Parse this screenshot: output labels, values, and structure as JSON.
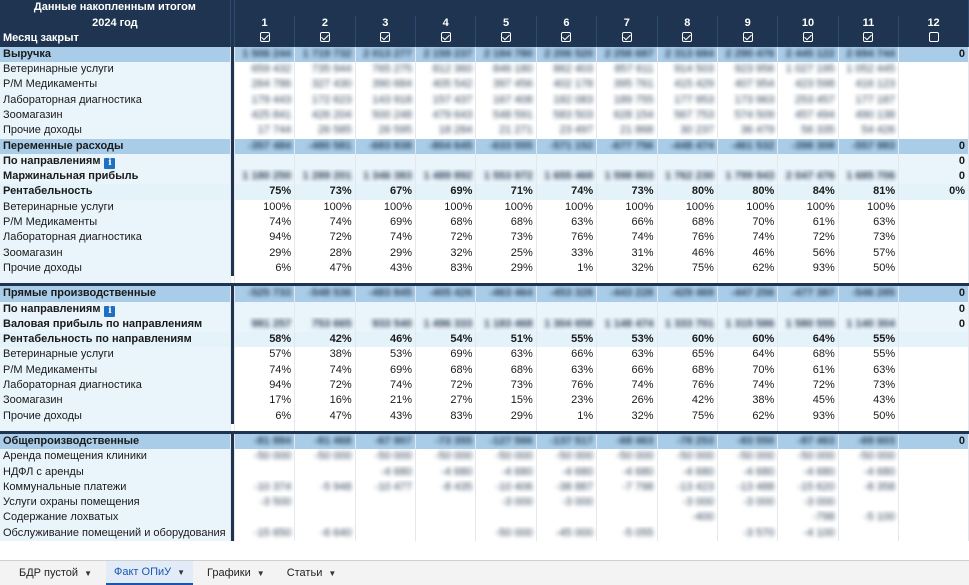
{
  "header": {
    "title": "Данные накопленным итогом",
    "year_label": "2024 год",
    "months": [
      "1",
      "2",
      "3",
      "4",
      "5",
      "6",
      "7",
      "8",
      "9",
      "10",
      "11",
      "12"
    ],
    "month_closed_label": "Месяц закрыт",
    "month_closed": [
      true,
      true,
      true,
      true,
      true,
      true,
      true,
      true,
      true,
      true,
      true,
      false
    ]
  },
  "rows": [
    {
      "type": "sec",
      "label": "Выручка",
      "values": [
        "1 506 244",
        "1 719 732",
        "2 013 277",
        "2 159 237",
        "2 184 780",
        "2 206 520",
        "2 258 687",
        "2 313 684",
        "2 290 476",
        "2 445 122",
        "2 694 744",
        "0"
      ],
      "blur": true
    },
    {
      "type": "sub",
      "label": "Ветеринарные услуги",
      "values": [
        "659 432",
        "735 944",
        "765 275",
        "812 360",
        "846 180",
        "862 403",
        "857 611",
        "914 503",
        "923 956",
        "1 027 195",
        "1 052 445",
        ""
      ],
      "blur": true
    },
    {
      "type": "sub",
      "label": "Р/М Медикаменты",
      "values": [
        "264 786",
        "327 430",
        "390 684",
        "405 542",
        "397 456",
        "402 178",
        "395 761",
        "415 429",
        "407 954",
        "423 598",
        "416 123",
        ""
      ],
      "blur": true
    },
    {
      "type": "sub",
      "label": "Лабораторная диагностика",
      "values": [
        "179 443",
        "172 623",
        "143 918",
        "157 437",
        "167 408",
        "182 083",
        "189 755",
        "177 953",
        "173 963",
        "253 457",
        "177 187",
        ""
      ],
      "blur": true
    },
    {
      "type": "sub",
      "label": "Зоомагазин",
      "values": [
        "425 841",
        "426 204",
        "500 248",
        "479 643",
        "548 591",
        "583 503",
        "628 154",
        "567 753",
        "574 509",
        "457 494",
        "490 138",
        ""
      ],
      "blur": true
    },
    {
      "type": "sub",
      "label": "Прочие доходы",
      "values": [
        "17 744",
        "26 585",
        "26 595",
        "18 284",
        "21 271",
        "23 497",
        "21 868",
        "30 237",
        "36 479",
        "56 335",
        "54 426",
        ""
      ],
      "blur": true
    },
    {
      "type": "sec",
      "label": "Переменные расходы",
      "values": [
        "-357 484",
        "-480 581",
        "-683 838",
        "-804 645",
        "-633 555",
        "-571 152",
        "-677 756",
        "-448 474",
        "-461 532",
        "-398 308",
        "-557 983",
        "0"
      ],
      "blur": true
    },
    {
      "type": "bold",
      "label": "По направлениям",
      "info": true,
      "values": [
        "",
        "",
        "",
        "",
        "",
        "",
        "",
        "",
        "",
        "",
        "",
        "0"
      ],
      "blur": false
    },
    {
      "type": "bold",
      "label": "Маржинальная прибыль",
      "values": [
        "1 180 250",
        "1 289 201",
        "1 346 383",
        "1 489 892",
        "1 553 972",
        "1 655 468",
        "1 598 803",
        "1 762 230",
        "1 799 943",
        "2 047 476",
        "1 685 706",
        "0"
      ],
      "blur": true
    },
    {
      "type": "pct",
      "label": "Рентабельность",
      "values": [
        "75%",
        "73%",
        "67%",
        "69%",
        "71%",
        "74%",
        "73%",
        "80%",
        "80%",
        "84%",
        "81%",
        "0%"
      ],
      "blur": false
    },
    {
      "type": "sub",
      "label": "Ветеринарные услуги",
      "values": [
        "100%",
        "100%",
        "100%",
        "100%",
        "100%",
        "100%",
        "100%",
        "100%",
        "100%",
        "100%",
        "100%",
        ""
      ],
      "blur": false
    },
    {
      "type": "sub",
      "label": "Р/М Медикаменты",
      "values": [
        "74%",
        "74%",
        "69%",
        "68%",
        "68%",
        "63%",
        "66%",
        "68%",
        "70%",
        "61%",
        "63%",
        ""
      ],
      "blur": false
    },
    {
      "type": "sub",
      "label": "Лабораторная диагностика",
      "values": [
        "94%",
        "72%",
        "74%",
        "72%",
        "73%",
        "76%",
        "74%",
        "76%",
        "74%",
        "72%",
        "73%",
        ""
      ],
      "blur": false
    },
    {
      "type": "sub",
      "label": "Зоомагазин",
      "values": [
        "29%",
        "28%",
        "29%",
        "32%",
        "25%",
        "33%",
        "31%",
        "46%",
        "46%",
        "56%",
        "57%",
        ""
      ],
      "blur": false
    },
    {
      "type": "sub",
      "label": "Прочие доходы",
      "values": [
        "6%",
        "47%",
        "43%",
        "83%",
        "29%",
        "1%",
        "32%",
        "75%",
        "62%",
        "93%",
        "50%",
        ""
      ],
      "blur": false
    },
    {
      "type": "blank"
    },
    {
      "type": "sep"
    },
    {
      "type": "sec",
      "label": "Прямые производственные",
      "values": [
        "-525 733",
        "-548 536",
        "-483 845",
        "-405 426",
        "-463 464",
        "-453 328",
        "-443 228",
        "-429 469",
        "-447 256",
        "-477 387",
        "-546 285",
        "0"
      ],
      "blur": true
    },
    {
      "type": "bold",
      "label": "По направлениям",
      "info": true,
      "values": [
        "",
        "",
        "",
        "",
        "",
        "",
        "",
        "",
        "",
        "",
        "",
        "0"
      ],
      "blur": false
    },
    {
      "type": "bold",
      "label": "Валовая прибыль по направлениям",
      "values": [
        "981 257",
        "753 665",
        "933 540",
        "1 496 333",
        "1 183 468",
        "1 304 658",
        "1 148 474",
        "1 333 701",
        "1 315 586",
        "1 580 555",
        "1 140 304",
        "0"
      ],
      "blur": true
    },
    {
      "type": "pct",
      "label": "Рентабельность по направлениям",
      "values": [
        "58%",
        "42%",
        "46%",
        "54%",
        "51%",
        "55%",
        "53%",
        "60%",
        "60%",
        "64%",
        "55%",
        ""
      ],
      "blur": false
    },
    {
      "type": "sub",
      "label": "Ветеринарные услуги",
      "values": [
        "57%",
        "38%",
        "53%",
        "69%",
        "63%",
        "66%",
        "63%",
        "65%",
        "64%",
        "68%",
        "55%",
        ""
      ],
      "blur": false
    },
    {
      "type": "sub",
      "label": "Р/М Медикаменты",
      "values": [
        "74%",
        "74%",
        "69%",
        "68%",
        "68%",
        "63%",
        "66%",
        "68%",
        "70%",
        "61%",
        "63%",
        ""
      ],
      "blur": false
    },
    {
      "type": "sub",
      "label": "Лабораторная диагностика",
      "values": [
        "94%",
        "72%",
        "74%",
        "72%",
        "73%",
        "76%",
        "74%",
        "76%",
        "74%",
        "72%",
        "73%",
        ""
      ],
      "blur": false
    },
    {
      "type": "sub",
      "label": "Зоомагазин",
      "values": [
        "17%",
        "16%",
        "21%",
        "27%",
        "15%",
        "23%",
        "26%",
        "42%",
        "38%",
        "45%",
        "43%",
        ""
      ],
      "blur": false
    },
    {
      "type": "sub",
      "label": "Прочие доходы",
      "values": [
        "6%",
        "47%",
        "43%",
        "83%",
        "29%",
        "1%",
        "32%",
        "75%",
        "62%",
        "93%",
        "50%",
        ""
      ],
      "blur": false
    },
    {
      "type": "blank"
    },
    {
      "type": "sep"
    },
    {
      "type": "sec",
      "label": "Общепроизводственные",
      "values": [
        "-81 884",
        "-81 468",
        "-67 907",
        "-73 355",
        "-127 566",
        "-137 517",
        "-68 463",
        "-78 253",
        "-83 550",
        "-87 463",
        "-69 603",
        "0"
      ],
      "blur": true
    },
    {
      "type": "sub",
      "label": "Аренда помещения клиники",
      "values": [
        "-50 000",
        "-50 000",
        "-50 000",
        "-50 000",
        "-50 000",
        "-50 000",
        "-50 000",
        "-50 000",
        "-50 000",
        "-50 000",
        "-50 000",
        ""
      ],
      "blur": true
    },
    {
      "type": "sub",
      "label": "НДФЛ с аренды",
      "values": [
        "",
        "",
        "-4 680",
        "-4 680",
        "-4 680",
        "-4 680",
        "-4 680",
        "-4 680",
        "-4 680",
        "-4 680",
        "-4 680",
        ""
      ],
      "blur": true
    },
    {
      "type": "sub",
      "label": "Коммунальные платежи",
      "values": [
        "-10 374",
        "-5 948",
        "-10 477",
        "-8 435",
        "-10 406",
        "-38 887",
        "-7 798",
        "-13 423",
        "-13 488",
        "-15 620",
        "-8 358",
        ""
      ],
      "blur": true
    },
    {
      "type": "sub",
      "label": "Услуги охраны помещения",
      "values": [
        "-3 500",
        "",
        "",
        "",
        "-3 000",
        "-3 000",
        "",
        "-3 000",
        "-3 000",
        "-3 000",
        "",
        ""
      ],
      "blur": true
    },
    {
      "type": "sub",
      "label": "Содержание лохватых",
      "values": [
        "",
        "",
        "",
        "",
        "",
        "",
        "",
        "-400",
        "",
        "-798",
        "-5 100",
        ""
      ],
      "blur": true
    },
    {
      "type": "sub",
      "label": "Обслуживание помещений и оборудования",
      "values": [
        "-15 650",
        "-6 640",
        "",
        "",
        "-50 000",
        "-45 000",
        "-5 055",
        "",
        "-3 570",
        "-4 100",
        "",
        ""
      ],
      "blur": true
    }
  ],
  "tabs": [
    {
      "label": "БДР пустой",
      "active": false
    },
    {
      "label": "Факт ОПиУ",
      "active": true
    },
    {
      "label": "Графики",
      "active": false
    },
    {
      "label": "Статьи",
      "active": false
    }
  ]
}
